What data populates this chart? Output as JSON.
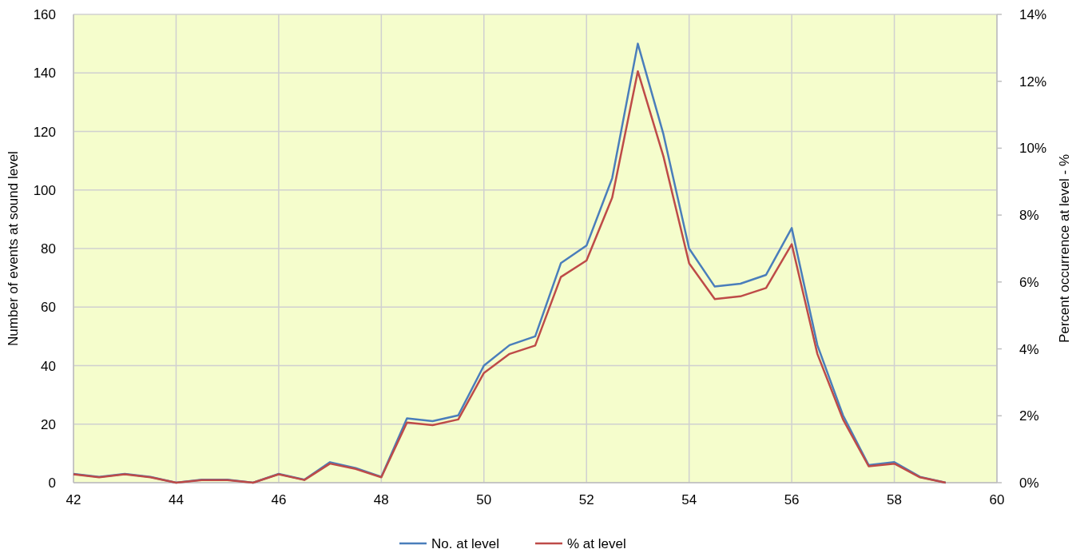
{
  "chart_data": {
    "type": "line",
    "xlabel": null,
    "ylabel": "Number of events at sound level",
    "y2label": "Percent occurrence at level - %",
    "x": [
      42,
      42.5,
      43,
      43.5,
      44,
      44.5,
      45,
      45.5,
      46,
      46.5,
      47,
      47.5,
      48,
      48.5,
      49,
      49.5,
      50,
      50.5,
      51,
      51.5,
      52,
      52.5,
      53,
      53.5,
      54,
      54.5,
      55,
      55.5,
      56,
      56.5,
      57,
      57.5,
      58,
      58.5,
      59
    ],
    "series": [
      {
        "name": "No. at level",
        "color": "#4a7ebb",
        "values": [
          3,
          2,
          3,
          2,
          0,
          1,
          1,
          0,
          3,
          1,
          7,
          5,
          2,
          22,
          21,
          23,
          40,
          47,
          50,
          75,
          81,
          104,
          150,
          119,
          80,
          67,
          68,
          71,
          87,
          47,
          23,
          6,
          7,
          2,
          0
        ]
      },
      {
        "name": "% at level",
        "color": "#be4b48",
        "axis": "y2",
        "values": [
          0.25,
          0.16,
          0.25,
          0.16,
          0,
          0.08,
          0.08,
          0,
          0.25,
          0.08,
          0.57,
          0.41,
          0.16,
          1.8,
          1.72,
          1.89,
          3.28,
          3.85,
          4.1,
          6.15,
          6.64,
          8.52,
          12.3,
          9.75,
          6.56,
          5.49,
          5.57,
          5.82,
          7.13,
          3.85,
          1.89,
          0.49,
          0.57,
          0.16,
          0
        ]
      }
    ],
    "xlim": [
      42,
      60
    ],
    "xticks": [
      42,
      44,
      46,
      48,
      50,
      52,
      54,
      56,
      58,
      60
    ],
    "ylim": [
      0,
      160
    ],
    "yticks": [
      0,
      20,
      40,
      60,
      80,
      100,
      120,
      140,
      160
    ],
    "y2lim": [
      0,
      14
    ],
    "y2ticks": [
      {
        "value": 0,
        "label": "0%"
      },
      {
        "value": 2,
        "label": "2%"
      },
      {
        "value": 4,
        "label": "4%"
      },
      {
        "value": 6,
        "label": "6%"
      },
      {
        "value": 8,
        "label": "8%"
      },
      {
        "value": 10,
        "label": "10%"
      },
      {
        "value": 12,
        "label": "12%"
      },
      {
        "value": 14,
        "label": "14%"
      }
    ],
    "grid": true,
    "legend": "bottom",
    "marker": "none",
    "line_style": "solid"
  }
}
